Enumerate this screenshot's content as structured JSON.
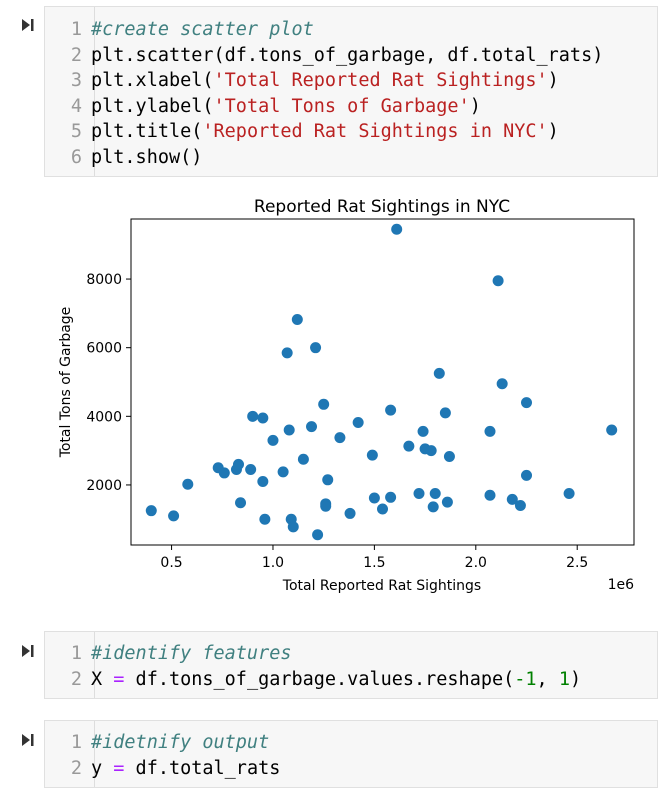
{
  "cells": [
    {
      "id": "cell-1",
      "lines": [
        {
          "n": "1",
          "tokens": [
            {
              "t": "#create scatter plot",
              "c": "cm"
            }
          ]
        },
        {
          "n": "2",
          "tokens": [
            {
              "t": "plt.scatter(df.tons_of_garbage, df.total_rats)",
              "c": "tx"
            }
          ]
        },
        {
          "n": "3",
          "tokens": [
            {
              "t": "plt.xlabel(",
              "c": "tx"
            },
            {
              "t": "'Total Reported Rat Sightings'",
              "c": "st"
            },
            {
              "t": ")",
              "c": "tx"
            }
          ]
        },
        {
          "n": "4",
          "tokens": [
            {
              "t": "plt.ylabel(",
              "c": "tx"
            },
            {
              "t": "'Total Tons of Garbage'",
              "c": "st"
            },
            {
              "t": ")",
              "c": "tx"
            }
          ]
        },
        {
          "n": "5",
          "tokens": [
            {
              "t": "plt.title(",
              "c": "tx"
            },
            {
              "t": "'Reported Rat Sightings in NYC'",
              "c": "st"
            },
            {
              "t": ")",
              "c": "tx"
            }
          ]
        },
        {
          "n": "6",
          "tokens": [
            {
              "t": "plt.show()",
              "c": "tx"
            }
          ]
        }
      ]
    },
    {
      "id": "cell-2",
      "lines": [
        {
          "n": "1",
          "tokens": [
            {
              "t": "#identify features",
              "c": "cm"
            }
          ]
        },
        {
          "n": "2",
          "tokens": [
            {
              "t": "X ",
              "c": "tx"
            },
            {
              "t": "=",
              "c": "op"
            },
            {
              "t": " df.tons_of_garbage.values.reshape(",
              "c": "tx"
            },
            {
              "t": "-1",
              "c": "nu"
            },
            {
              "t": ", ",
              "c": "tx"
            },
            {
              "t": "1",
              "c": "nu"
            },
            {
              "t": ")",
              "c": "tx"
            }
          ]
        }
      ]
    },
    {
      "id": "cell-3",
      "lines": [
        {
          "n": "1",
          "tokens": [
            {
              "t": "#idetnify output",
              "c": "cm"
            }
          ]
        },
        {
          "n": "2",
          "tokens": [
            {
              "t": "y ",
              "c": "tx"
            },
            {
              "t": "=",
              "c": "op"
            },
            {
              "t": " df.total_rats",
              "c": "tx"
            }
          ]
        }
      ]
    }
  ],
  "colors": {
    "point": "#1f77b4",
    "cell_bg": "#f7f7f7",
    "comment": "#408080",
    "string": "#ba2121",
    "operator": "#aa22ff",
    "number": "#008000"
  },
  "icons": {
    "run": "run-cell-icon"
  },
  "chart_data": {
    "type": "scatter",
    "title": "Reported Rat Sightings in NYC",
    "xlabel": "Total Reported Rat Sightings",
    "ylabel": "Total Tons of Garbage",
    "x_offset_text": "1e6",
    "xlim": [
      0.3,
      2.78
    ],
    "ylim": [
      250,
      9750
    ],
    "xticks": [
      0.5,
      1.0,
      1.5,
      2.0,
      2.5
    ],
    "xtick_labels": [
      "0.5",
      "1.0",
      "1.5",
      "2.0",
      "2.5"
    ],
    "yticks": [
      2000,
      4000,
      6000,
      8000
    ],
    "ytick_labels": [
      "2000",
      "4000",
      "6000",
      "8000"
    ],
    "grid": false,
    "legend": false,
    "points": [
      [
        0.4,
        1250
      ],
      [
        0.51,
        1100
      ],
      [
        0.58,
        2020
      ],
      [
        0.73,
        2500
      ],
      [
        0.76,
        2350
      ],
      [
        0.82,
        2450
      ],
      [
        0.83,
        2600
      ],
      [
        0.84,
        1480
      ],
      [
        0.89,
        2450
      ],
      [
        0.9,
        4000
      ],
      [
        0.95,
        3950
      ],
      [
        0.95,
        2100
      ],
      [
        0.96,
        1000
      ],
      [
        1.0,
        3300
      ],
      [
        1.05,
        2380
      ],
      [
        1.07,
        5850
      ],
      [
        1.08,
        3600
      ],
      [
        1.09,
        1000
      ],
      [
        1.1,
        780
      ],
      [
        1.12,
        6820
      ],
      [
        1.15,
        2750
      ],
      [
        1.19,
        3700
      ],
      [
        1.21,
        6000
      ],
      [
        1.22,
        550
      ],
      [
        1.25,
        4350
      ],
      [
        1.27,
        2150
      ],
      [
        1.26,
        1450
      ],
      [
        1.26,
        1380
      ],
      [
        1.33,
        3380
      ],
      [
        1.38,
        1170
      ],
      [
        1.42,
        3820
      ],
      [
        1.49,
        2870
      ],
      [
        1.5,
        1620
      ],
      [
        1.54,
        1300
      ],
      [
        1.58,
        1640
      ],
      [
        1.58,
        4180
      ],
      [
        1.61,
        9450
      ],
      [
        1.67,
        3130
      ],
      [
        1.72,
        1750
      ],
      [
        1.74,
        3560
      ],
      [
        1.75,
        3050
      ],
      [
        1.78,
        3000
      ],
      [
        1.79,
        1360
      ],
      [
        1.8,
        1750
      ],
      [
        1.82,
        5250
      ],
      [
        1.85,
        4100
      ],
      [
        1.86,
        1500
      ],
      [
        1.87,
        2830
      ],
      [
        2.07,
        3560
      ],
      [
        2.07,
        1700
      ],
      [
        2.11,
        7950
      ],
      [
        2.13,
        4950
      ],
      [
        2.18,
        1580
      ],
      [
        2.22,
        1400
      ],
      [
        2.25,
        4400
      ],
      [
        2.25,
        2280
      ],
      [
        2.46,
        1750
      ],
      [
        2.67,
        3600
      ]
    ]
  }
}
